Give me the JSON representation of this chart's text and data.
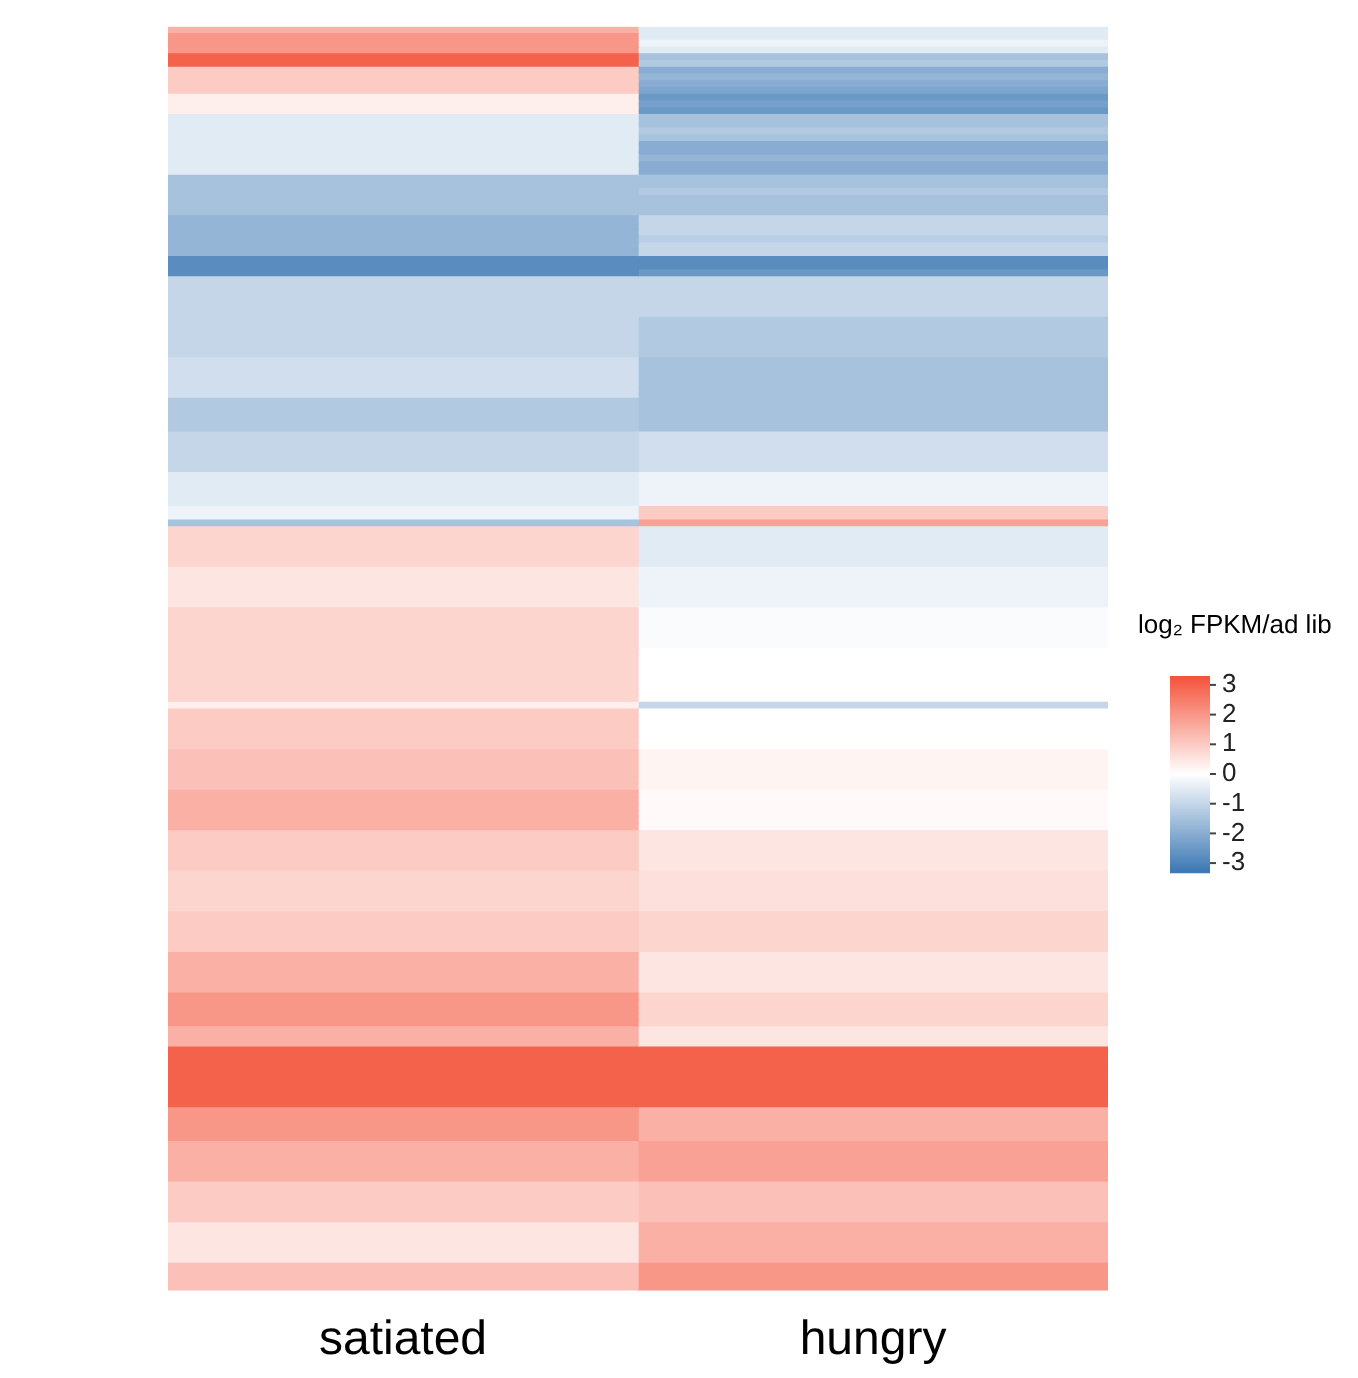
{
  "chart_data": {
    "type": "heatmap",
    "categories": [
      "satiated",
      "hungry"
    ],
    "y_categories": [
      null,
      null,
      null,
      null,
      null,
      null,
      null,
      null,
      null,
      null,
      null,
      null,
      null,
      null,
      null,
      null,
      null,
      null,
      null,
      null,
      null,
      null,
      null,
      null,
      null,
      null,
      null,
      null,
      null,
      null,
      null,
      null,
      null,
      null,
      null,
      null,
      null,
      null,
      null,
      null,
      null,
      null,
      null,
      null,
      null,
      null,
      null,
      null,
      null,
      null,
      null,
      null,
      null,
      null,
      null,
      null,
      null,
      null,
      null,
      null,
      null,
      null,
      null,
      null,
      null,
      null,
      null,
      null,
      null,
      null,
      null,
      null,
      null,
      null,
      null,
      null,
      null,
      null,
      null,
      null,
      null,
      null,
      null,
      null,
      null,
      null,
      null,
      null,
      null,
      null,
      null,
      null,
      null,
      null,
      null,
      null,
      null,
      null,
      null,
      null,
      null,
      null,
      null,
      null,
      null,
      null,
      null,
      null,
      null,
      null,
      null,
      null,
      null,
      null,
      null,
      null,
      null,
      null,
      null,
      null,
      null,
      null,
      null,
      null,
      null,
      null,
      null,
      null,
      null,
      null,
      null,
      null,
      null,
      null,
      null,
      null,
      null,
      null,
      null,
      null,
      null,
      null,
      null,
      null,
      null,
      null,
      null,
      null,
      null,
      null,
      null,
      null,
      null,
      null,
      null,
      null,
      null,
      null,
      null,
      null,
      null,
      null,
      null,
      null,
      null,
      null,
      null,
      null,
      null,
      null,
      null,
      null,
      null,
      null,
      null,
      null,
      null,
      null,
      null,
      null,
      null,
      null,
      null,
      null,
      null,
      null,
      null
    ],
    "cells": [
      [
        1.5,
        -0.5
      ],
      [
        2,
        -0.5
      ],
      [
        2,
        -0.3
      ],
      [
        2,
        -0.5
      ],
      [
        3,
        -1.5
      ],
      [
        3,
        -1.3
      ],
      [
        1,
        -2
      ],
      [
        1,
        -1.8
      ],
      [
        1,
        -2
      ],
      [
        1,
        -2.2
      ],
      [
        0.3,
        -2.5
      ],
      [
        0.3,
        -2.3
      ],
      [
        0.3,
        -2.5
      ],
      [
        -0.5,
        -1.5
      ],
      [
        -0.5,
        -1.5
      ],
      [
        -0.5,
        -1.3
      ],
      [
        -0.5,
        -1.5
      ],
      [
        -0.5,
        -2
      ],
      [
        -0.5,
        -2
      ],
      [
        -0.5,
        -1.8
      ],
      [
        -0.5,
        -2
      ],
      [
        -0.5,
        -2
      ],
      [
        -1.5,
        -1.5
      ],
      [
        -1.5,
        -1.5
      ],
      [
        -1.5,
        -1.3
      ],
      [
        -1.5,
        -1.5
      ],
      [
        -1.5,
        -1.5
      ],
      [
        -1.5,
        -1.5
      ],
      [
        -1.8,
        -1
      ],
      [
        -1.8,
        -1
      ],
      [
        -1.8,
        -1
      ],
      [
        -1.8,
        -1.2
      ],
      [
        -1.8,
        -1
      ],
      [
        -1.8,
        -1
      ],
      [
        -2.8,
        -2.8
      ],
      [
        -2.8,
        -2.8
      ],
      [
        -2.8,
        -2.5
      ],
      [
        -1,
        -1
      ],
      [
        -1,
        -1
      ],
      [
        -1,
        -1
      ],
      [
        -1,
        -1
      ],
      [
        -1,
        -1
      ],
      [
        -1,
        -1
      ],
      [
        -1,
        -1.3
      ],
      [
        -1,
        -1.3
      ],
      [
        -1,
        -1.3
      ],
      [
        -1,
        -1.3
      ],
      [
        -1,
        -1.3
      ],
      [
        -1,
        -1.3
      ],
      [
        -0.8,
        -1.5
      ],
      [
        -0.8,
        -1.5
      ],
      [
        -0.8,
        -1.5
      ],
      [
        -0.8,
        -1.5
      ],
      [
        -0.8,
        -1.5
      ],
      [
        -0.8,
        -1.5
      ],
      [
        -1.3,
        -1.5
      ],
      [
        -1.3,
        -1.5
      ],
      [
        -1.3,
        -1.5
      ],
      [
        -1.3,
        -1.5
      ],
      [
        -1.3,
        -1.5
      ],
      [
        -1,
        -0.8
      ],
      [
        -1,
        -0.8
      ],
      [
        -1,
        -0.8
      ],
      [
        -1,
        -0.8
      ],
      [
        -1,
        -0.8
      ],
      [
        -1,
        -0.8
      ],
      [
        -0.5,
        -0.3
      ],
      [
        -0.5,
        -0.3
      ],
      [
        -0.5,
        -0.3
      ],
      [
        -0.5,
        -0.3
      ],
      [
        -0.5,
        -0.3
      ],
      [
        -0.3,
        1
      ],
      [
        -0.3,
        1
      ],
      [
        -1.5,
        1.8
      ],
      [
        0.8,
        -0.5
      ],
      [
        0.8,
        -0.5
      ],
      [
        0.8,
        -0.5
      ],
      [
        0.8,
        -0.5
      ],
      [
        0.8,
        -0.5
      ],
      [
        0.8,
        -0.5
      ],
      [
        0.5,
        -0.3
      ],
      [
        0.5,
        -0.3
      ],
      [
        0.5,
        -0.3
      ],
      [
        0.5,
        -0.3
      ],
      [
        0.5,
        -0.3
      ],
      [
        0.5,
        -0.3
      ],
      [
        0.8,
        -0.1
      ],
      [
        0.8,
        -0.1
      ],
      [
        0.8,
        -0.1
      ],
      [
        0.8,
        -0.1
      ],
      [
        0.8,
        -0.1
      ],
      [
        0.8,
        -0.1
      ],
      [
        0.8,
        0
      ],
      [
        0.8,
        0
      ],
      [
        0.8,
        0
      ],
      [
        0.8,
        0
      ],
      [
        0.8,
        0
      ],
      [
        0.8,
        0
      ],
      [
        0.8,
        0
      ],
      [
        0.8,
        0
      ],
      [
        0.3,
        -1
      ],
      [
        1,
        0
      ],
      [
        1,
        0
      ],
      [
        1,
        0
      ],
      [
        1,
        0
      ],
      [
        1,
        0
      ],
      [
        1,
        0
      ],
      [
        1.2,
        0.2
      ],
      [
        1.2,
        0.2
      ],
      [
        1.2,
        0.2
      ],
      [
        1.2,
        0.2
      ],
      [
        1.2,
        0.2
      ],
      [
        1.2,
        0.2
      ],
      [
        1.5,
        0.1
      ],
      [
        1.5,
        0.1
      ],
      [
        1.5,
        0.1
      ],
      [
        1.5,
        0.1
      ],
      [
        1.5,
        0.1
      ],
      [
        1.5,
        0.1
      ],
      [
        1,
        0.5
      ],
      [
        1,
        0.5
      ],
      [
        1,
        0.5
      ],
      [
        1,
        0.5
      ],
      [
        1,
        0.5
      ],
      [
        1,
        0.5
      ],
      [
        0.8,
        0.6
      ],
      [
        0.8,
        0.6
      ],
      [
        0.8,
        0.6
      ],
      [
        0.8,
        0.6
      ],
      [
        0.8,
        0.6
      ],
      [
        0.8,
        0.6
      ],
      [
        1,
        0.8
      ],
      [
        1,
        0.8
      ],
      [
        1,
        0.8
      ],
      [
        1,
        0.8
      ],
      [
        1,
        0.8
      ],
      [
        1,
        0.8
      ],
      [
        1.5,
        0.5
      ],
      [
        1.5,
        0.5
      ],
      [
        1.5,
        0.5
      ],
      [
        1.5,
        0.5
      ],
      [
        1.5,
        0.5
      ],
      [
        1.5,
        0.5
      ],
      [
        2,
        0.8
      ],
      [
        2,
        0.8
      ],
      [
        2,
        0.8
      ],
      [
        2,
        0.8
      ],
      [
        2,
        0.8
      ],
      [
        1.5,
        0.5
      ],
      [
        1.5,
        0.5
      ],
      [
        1.5,
        0.5
      ],
      [
        3,
        3
      ],
      [
        3,
        3
      ],
      [
        3,
        3
      ],
      [
        3,
        3
      ],
      [
        3,
        3
      ],
      [
        3,
        3
      ],
      [
        3,
        3
      ],
      [
        3,
        3
      ],
      [
        3,
        3
      ],
      [
        2,
        1.5
      ],
      [
        2,
        1.5
      ],
      [
        2,
        1.5
      ],
      [
        2,
        1.5
      ],
      [
        2,
        1.5
      ],
      [
        1.5,
        1.8
      ],
      [
        1.5,
        1.8
      ],
      [
        1.5,
        1.8
      ],
      [
        1.5,
        1.8
      ],
      [
        1.5,
        1.8
      ],
      [
        1.5,
        1.8
      ],
      [
        1,
        1.2
      ],
      [
        1,
        1.2
      ],
      [
        1,
        1.2
      ],
      [
        1,
        1.2
      ],
      [
        1,
        1.2
      ],
      [
        1,
        1.2
      ],
      [
        0.5,
        1.5
      ],
      [
        0.5,
        1.5
      ],
      [
        0.5,
        1.5
      ],
      [
        0.5,
        1.5
      ],
      [
        0.5,
        1.5
      ],
      [
        0.5,
        1.5
      ],
      [
        1.2,
        2
      ],
      [
        1.2,
        2
      ],
      [
        1.2,
        2
      ],
      [
        1.2,
        2
      ]
    ],
    "clabel": "log₂ FPKM/ad lib",
    "clim": [
      -3.3,
      3.3
    ],
    "cticks": [
      3,
      2,
      1,
      0,
      -1,
      -2,
      -3
    ]
  }
}
